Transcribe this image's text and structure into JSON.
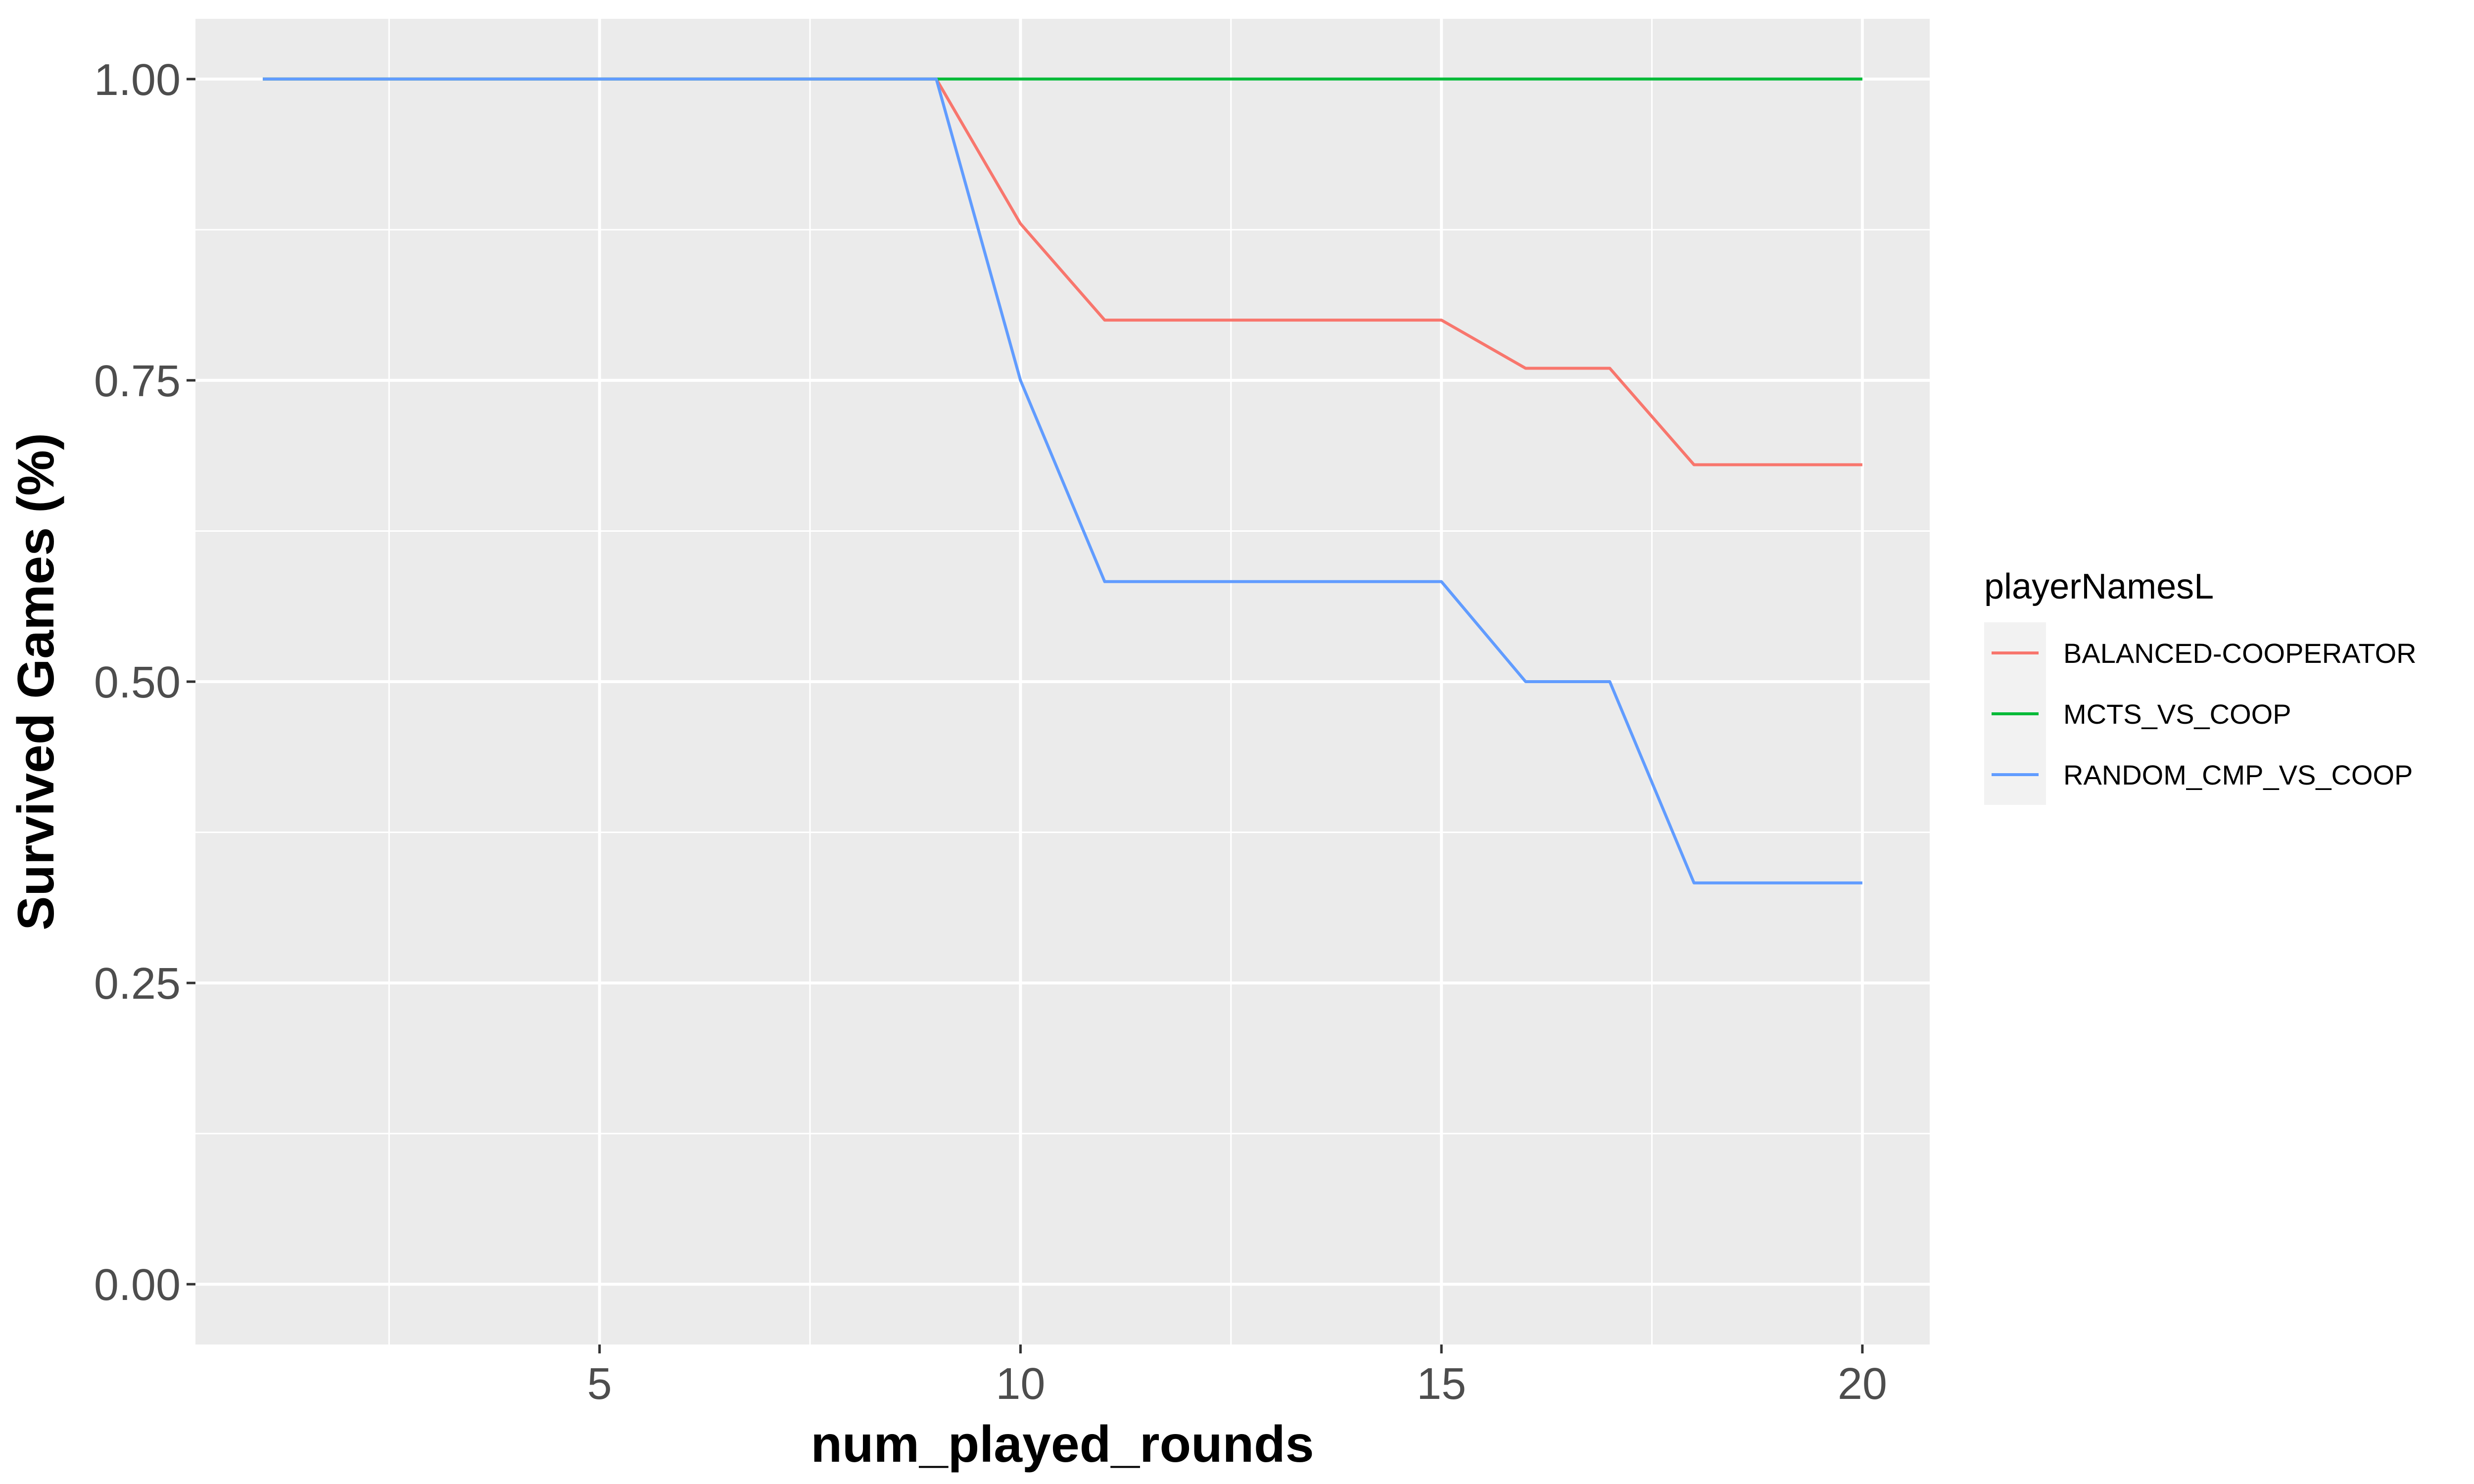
{
  "chart_data": {
    "type": "line",
    "xlabel": "num_played_rounds",
    "ylabel": "Survived Games (%)",
    "xlim": [
      0.2,
      20.8
    ],
    "ylim": [
      -0.05,
      1.05
    ],
    "x_ticks": [
      5,
      10,
      15,
      20
    ],
    "x_tick_labels": [
      "5",
      "10",
      "15",
      "20"
    ],
    "x_minor_ticks": [
      2.5,
      7.5,
      12.5,
      17.5
    ],
    "y_ticks": [
      0,
      0.25,
      0.5,
      0.75,
      1.0
    ],
    "y_tick_labels": [
      "0.00",
      "0.25",
      "0.50",
      "0.75",
      "1.00"
    ],
    "y_minor_ticks": [
      0.125,
      0.375,
      0.625,
      0.875
    ],
    "grid": true,
    "panel_background": "#EBEBEB",
    "legend": {
      "title": "playerNamesL",
      "position": "right"
    },
    "x": [
      1,
      2,
      3,
      4,
      5,
      6,
      7,
      8,
      9,
      10,
      11,
      12,
      13,
      14,
      15,
      16,
      17,
      18,
      19,
      20
    ],
    "series": [
      {
        "name": "BALANCED-COOPERATOR",
        "color": "#F8766D",
        "values": [
          1,
          1,
          1,
          1,
          1,
          1,
          1,
          1,
          1,
          0.88,
          0.8,
          0.8,
          0.8,
          0.8,
          0.8,
          0.76,
          0.76,
          0.68,
          0.68,
          0.68
        ]
      },
      {
        "name": "MCTS_VS_COOP",
        "color": "#00BA38",
        "values": [
          1,
          1,
          1,
          1,
          1,
          1,
          1,
          1,
          1,
          1,
          1,
          1,
          1,
          1,
          1,
          1,
          1,
          1,
          1,
          1
        ]
      },
      {
        "name": "RANDOM_CMP_VS_COOP",
        "color": "#619CFF",
        "values": [
          1,
          1,
          1,
          1,
          1,
          1,
          1,
          1,
          1,
          0.75,
          0.583,
          0.583,
          0.583,
          0.583,
          0.583,
          0.5,
          0.5,
          0.333,
          0.333,
          0.333
        ]
      }
    ]
  }
}
